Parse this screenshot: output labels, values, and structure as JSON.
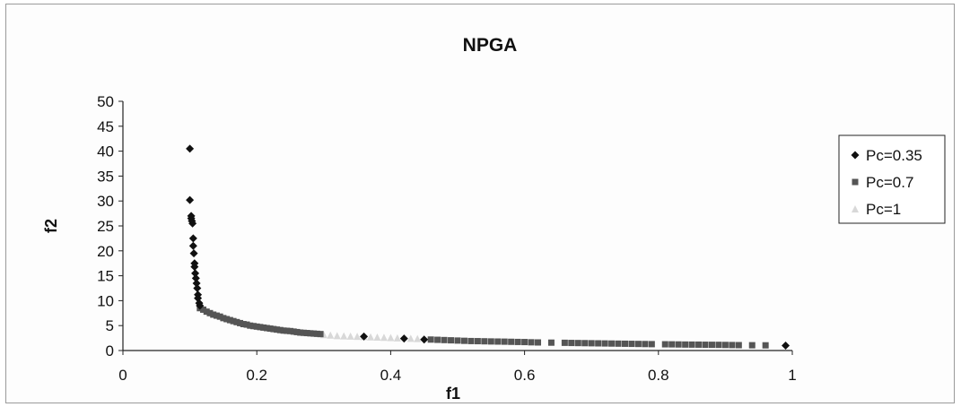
{
  "chart_data": {
    "type": "scatter",
    "title": "NPGA",
    "xlabel": "f1",
    "ylabel": "f2",
    "xlim": [
      0,
      1
    ],
    "ylim": [
      0,
      50
    ],
    "xticks": [
      "0",
      "0.2",
      "0.4",
      "0.6",
      "0.8",
      "1"
    ],
    "yticks": [
      "0",
      "5",
      "10",
      "15",
      "20",
      "25",
      "30",
      "35",
      "40",
      "45",
      "50"
    ],
    "grid": false,
    "legend_position": "right",
    "series": [
      {
        "name": "Pc=0.35",
        "marker": "diamond",
        "color": "#111111",
        "points": [
          [
            0.1,
            40.5
          ],
          [
            0.1,
            30.2
          ],
          [
            0.102,
            27.0
          ],
          [
            0.102,
            26.5
          ],
          [
            0.103,
            26.0
          ],
          [
            0.104,
            25.5
          ],
          [
            0.105,
            22.5
          ],
          [
            0.105,
            21.0
          ],
          [
            0.106,
            19.5
          ],
          [
            0.107,
            17.5
          ],
          [
            0.107,
            16.8
          ],
          [
            0.108,
            15.5
          ],
          [
            0.109,
            14.5
          ],
          [
            0.11,
            13.5
          ],
          [
            0.111,
            12.5
          ],
          [
            0.112,
            11.2
          ],
          [
            0.112,
            10.5
          ],
          [
            0.114,
            9.5
          ],
          [
            0.115,
            9.0
          ],
          [
            0.36,
            2.8
          ],
          [
            0.42,
            2.4
          ],
          [
            0.45,
            2.2
          ],
          [
            0.99,
            1.0
          ]
        ]
      },
      {
        "name": "Pc=0.7",
        "marker": "square",
        "color": "#555555",
        "points": [
          [
            0.115,
            8.5
          ],
          [
            0.12,
            8.2
          ],
          [
            0.125,
            7.8
          ],
          [
            0.13,
            7.5
          ],
          [
            0.135,
            7.2
          ],
          [
            0.14,
            7.0
          ],
          [
            0.145,
            6.8
          ],
          [
            0.15,
            6.5
          ],
          [
            0.155,
            6.3
          ],
          [
            0.16,
            6.1
          ],
          [
            0.165,
            5.9
          ],
          [
            0.17,
            5.7
          ],
          [
            0.175,
            5.5
          ],
          [
            0.18,
            5.3
          ],
          [
            0.185,
            5.2
          ],
          [
            0.19,
            5.0
          ],
          [
            0.195,
            4.9
          ],
          [
            0.2,
            4.8
          ],
          [
            0.205,
            4.7
          ],
          [
            0.21,
            4.6
          ],
          [
            0.215,
            4.5
          ],
          [
            0.22,
            4.4
          ],
          [
            0.225,
            4.3
          ],
          [
            0.23,
            4.2
          ],
          [
            0.235,
            4.1
          ],
          [
            0.24,
            4.0
          ],
          [
            0.245,
            3.95
          ],
          [
            0.25,
            3.9
          ],
          [
            0.255,
            3.8
          ],
          [
            0.26,
            3.7
          ],
          [
            0.265,
            3.6
          ],
          [
            0.27,
            3.55
          ],
          [
            0.275,
            3.5
          ],
          [
            0.28,
            3.45
          ],
          [
            0.285,
            3.4
          ],
          [
            0.29,
            3.35
          ],
          [
            0.295,
            3.3
          ],
          [
            0.46,
            2.2
          ],
          [
            0.47,
            2.15
          ],
          [
            0.48,
            2.1
          ],
          [
            0.49,
            2.05
          ],
          [
            0.5,
            2.0
          ],
          [
            0.51,
            1.95
          ],
          [
            0.52,
            1.9
          ],
          [
            0.53,
            1.88
          ],
          [
            0.54,
            1.85
          ],
          [
            0.55,
            1.82
          ],
          [
            0.56,
            1.8
          ],
          [
            0.57,
            1.78
          ],
          [
            0.58,
            1.75
          ],
          [
            0.59,
            1.72
          ],
          [
            0.6,
            1.7
          ],
          [
            0.61,
            1.65
          ],
          [
            0.62,
            1.62
          ],
          [
            0.64,
            1.58
          ],
          [
            0.66,
            1.55
          ],
          [
            0.67,
            1.52
          ],
          [
            0.68,
            1.5
          ],
          [
            0.69,
            1.48
          ],
          [
            0.7,
            1.46
          ],
          [
            0.71,
            1.44
          ],
          [
            0.72,
            1.42
          ],
          [
            0.73,
            1.4
          ],
          [
            0.74,
            1.38
          ],
          [
            0.75,
            1.36
          ],
          [
            0.76,
            1.34
          ],
          [
            0.77,
            1.32
          ],
          [
            0.78,
            1.3
          ],
          [
            0.79,
            1.28
          ],
          [
            0.81,
            1.25
          ],
          [
            0.82,
            1.24
          ],
          [
            0.83,
            1.22
          ],
          [
            0.84,
            1.2
          ],
          [
            0.85,
            1.19
          ],
          [
            0.86,
            1.18
          ],
          [
            0.87,
            1.16
          ],
          [
            0.88,
            1.15
          ],
          [
            0.89,
            1.14
          ],
          [
            0.9,
            1.12
          ],
          [
            0.91,
            1.1
          ],
          [
            0.92,
            1.08
          ],
          [
            0.94,
            1.06
          ],
          [
            0.96,
            1.04
          ]
        ]
      },
      {
        "name": "Pc=1",
        "marker": "triangle",
        "color": "#d8d8d8",
        "points": [
          [
            0.3,
            3.2
          ],
          [
            0.31,
            3.1
          ],
          [
            0.32,
            3.0
          ],
          [
            0.33,
            2.95
          ],
          [
            0.34,
            2.9
          ],
          [
            0.35,
            2.85
          ],
          [
            0.36,
            2.8
          ],
          [
            0.37,
            2.75
          ],
          [
            0.38,
            2.7
          ],
          [
            0.39,
            2.65
          ],
          [
            0.4,
            2.6
          ],
          [
            0.41,
            2.55
          ],
          [
            0.43,
            2.45
          ],
          [
            0.44,
            2.4
          ]
        ]
      }
    ]
  }
}
